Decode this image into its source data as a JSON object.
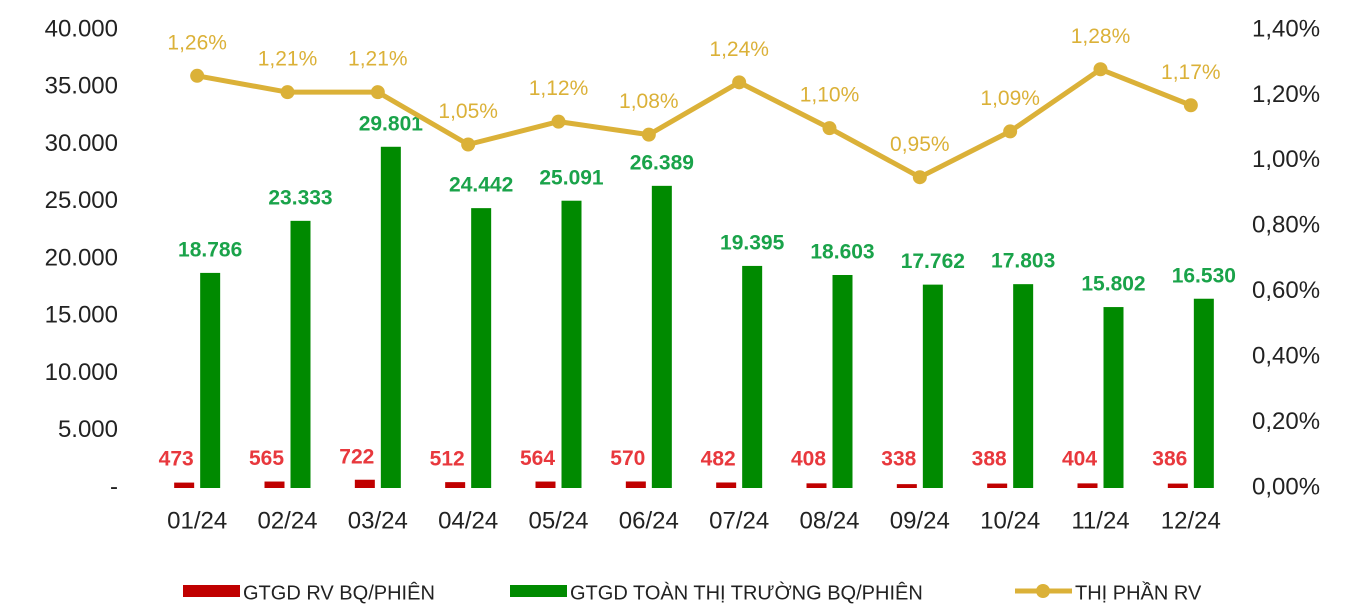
{
  "chart_data": {
    "type": "bar-line",
    "categories": [
      "01/24",
      "02/24",
      "03/24",
      "04/24",
      "05/24",
      "06/24",
      "07/24",
      "08/24",
      "09/24",
      "10/24",
      "11/24",
      "12/24"
    ],
    "series": [
      {
        "name": "GTGD RV BQ/PHIÊN",
        "type": "bar",
        "color": "#c00000",
        "label_color": "#e8383d",
        "values": [
          473,
          565,
          722,
          512,
          564,
          570,
          482,
          408,
          338,
          388,
          404,
          386
        ]
      },
      {
        "name": "GTGD TOÀN THỊ TRƯỜNG BQ/PHIÊN",
        "type": "bar",
        "color": "#008a00",
        "label_color": "#1aa34a",
        "values": [
          18786,
          23333,
          29801,
          24442,
          25091,
          26389,
          19395,
          18603,
          17762,
          17803,
          15802,
          16530
        ],
        "value_labels": [
          "18.786",
          "23.333",
          "29.801",
          "24.442",
          "25.091",
          "26.389",
          "19.395",
          "18.603",
          "17.762",
          "17.803",
          "15.802",
          "16.530"
        ]
      },
      {
        "name": "THỊ PHẦN RV",
        "type": "line",
        "axis": "y2",
        "color": "#dbb138",
        "label_color": "#dbb138",
        "values": [
          1.26,
          1.21,
          1.21,
          1.05,
          1.12,
          1.08,
          1.24,
          1.1,
          0.95,
          1.09,
          1.28,
          1.17
        ],
        "value_labels": [
          "1,26%",
          "1,21%",
          "1,21%",
          "1,05%",
          "1,12%",
          "1,08%",
          "1,24%",
          "1,10%",
          "0,95%",
          "1,09%",
          "1,28%",
          "1,17%"
        ]
      }
    ],
    "ylim": [
      0,
      40000
    ],
    "yticks": [
      {
        "value": 0,
        "label": "-"
      },
      {
        "value": 5000,
        "label": "5.000"
      },
      {
        "value": 10000,
        "label": "10.000"
      },
      {
        "value": 15000,
        "label": "15.000"
      },
      {
        "value": 20000,
        "label": "20.000"
      },
      {
        "value": 25000,
        "label": "25.000"
      },
      {
        "value": 30000,
        "label": "30.000"
      },
      {
        "value": 35000,
        "label": "35.000"
      },
      {
        "value": 40000,
        "label": "40.000"
      }
    ],
    "y2lim": [
      0,
      1.4
    ],
    "y2ticks": [
      {
        "value": 0,
        "label": "0,00%"
      },
      {
        "value": 0.2,
        "label": "0,20%"
      },
      {
        "value": 0.4,
        "label": "0,40%"
      },
      {
        "value": 0.6,
        "label": "0,60%"
      },
      {
        "value": 0.8,
        "label": "0,80%"
      },
      {
        "value": 1.0,
        "label": "1,00%"
      },
      {
        "value": 1.2,
        "label": "1,20%"
      },
      {
        "value": 1.4,
        "label": "1,40%"
      }
    ],
    "legend": "bottom"
  }
}
